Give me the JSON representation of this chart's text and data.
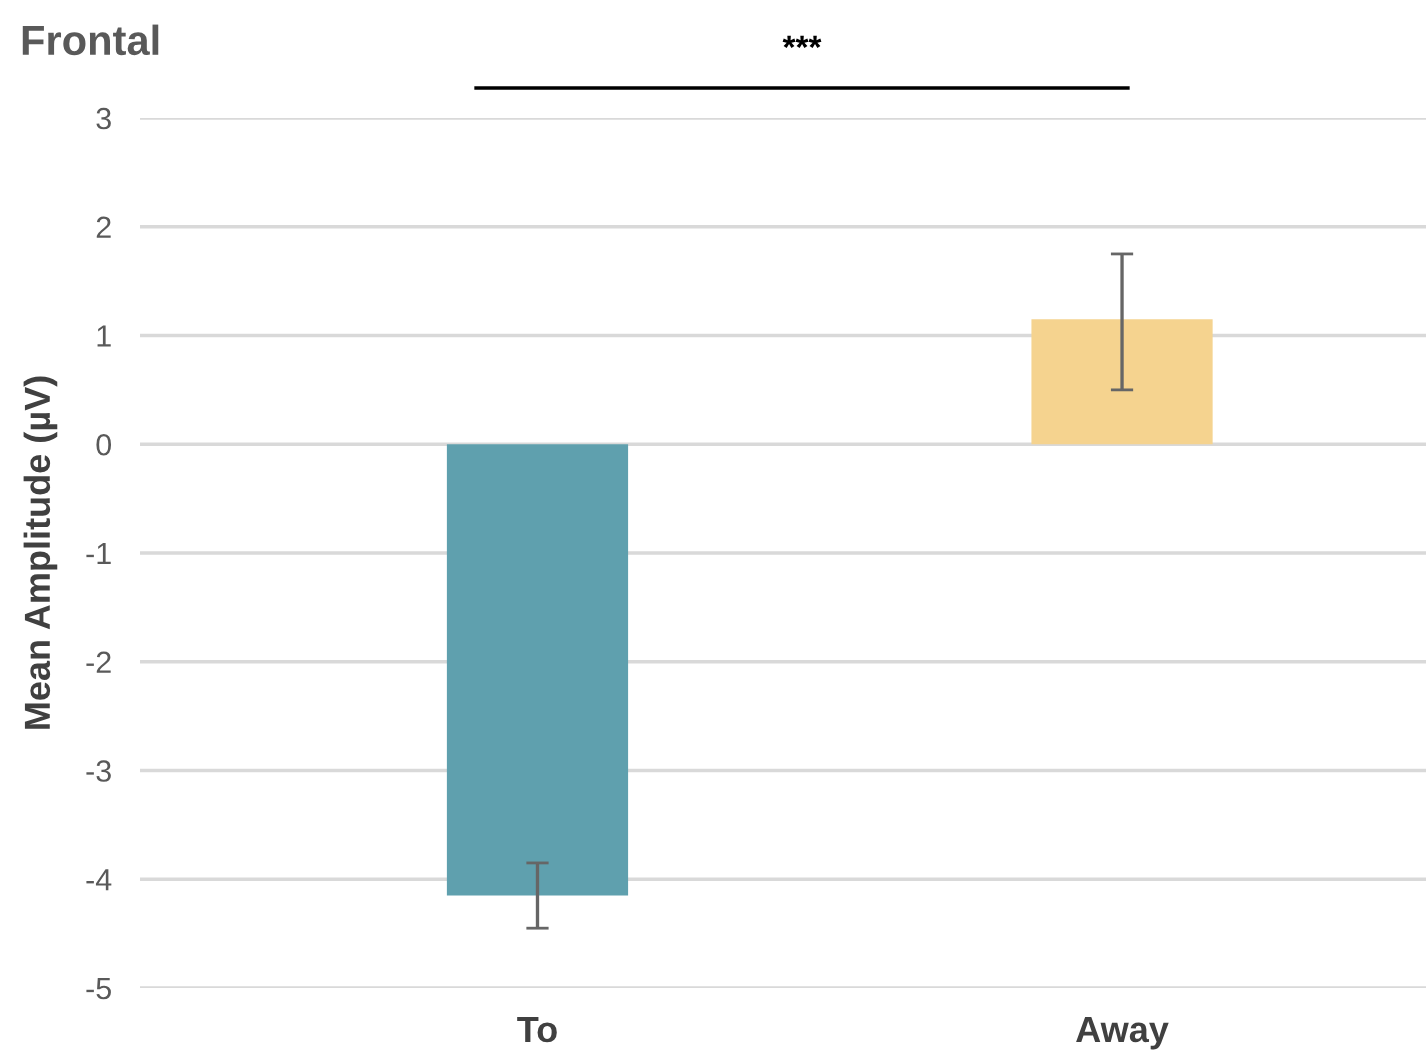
{
  "chart_data": {
    "type": "bar",
    "title": "Frontal",
    "ylabel": "Mean Amplitude (µV)",
    "categories": [
      "To",
      "Away"
    ],
    "values": [
      -4.15,
      1.15
    ],
    "colors": [
      "#5fa0ae",
      "#f5d38f"
    ],
    "errors": [
      [
        -4.45,
        -3.85
      ],
      [
        0.5,
        1.75
      ]
    ],
    "ylim": [
      -5,
      3
    ],
    "yticks": [
      {
        "value": -5,
        "label": "-5"
      },
      {
        "value": -4,
        "label": "-4"
      },
      {
        "value": -3,
        "label": "-3"
      },
      {
        "value": -2,
        "label": "-2"
      },
      {
        "value": -1,
        "label": "-1"
      },
      0,
      1,
      2,
      3
    ],
    "grid": "y",
    "legend": false,
    "annotations": [
      "***"
    ]
  }
}
